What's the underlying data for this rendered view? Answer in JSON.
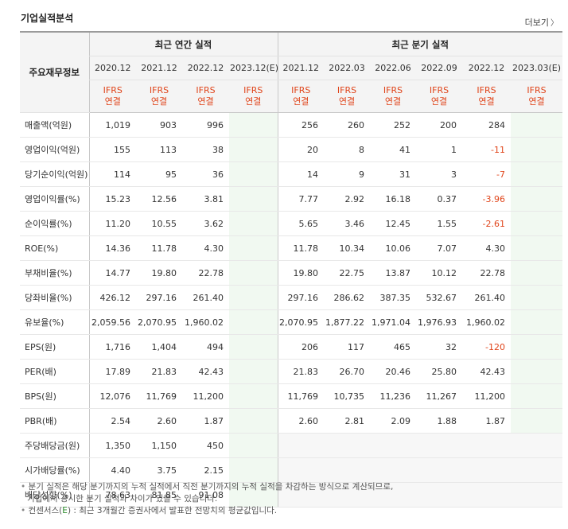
{
  "title": "기업실적분석",
  "more_link": "더보기",
  "table": {
    "row_header": "주요재무정보",
    "groups": {
      "annual": "최근 연간 실적",
      "quarterly": "최근 분기 실적"
    },
    "columns": [
      "2020.12",
      "2021.12",
      "2022.12",
      "2023.12(E)",
      "2021.12",
      "2022.03",
      "2022.06",
      "2022.09",
      "2022.12",
      "2023.03(E)"
    ],
    "standard_top": "IFRS",
    "standard_bottom": "연결",
    "rows": [
      {
        "label": "매출액(억원)",
        "values": [
          "1,019",
          "903",
          "996",
          "",
          "256",
          "260",
          "252",
          "200",
          "284",
          ""
        ]
      },
      {
        "label": "영업이익(억원)",
        "values": [
          "155",
          "113",
          "38",
          "",
          "20",
          "8",
          "41",
          "1",
          "-11",
          ""
        ]
      },
      {
        "label": "당기순이익(억원)",
        "values": [
          "114",
          "95",
          "36",
          "",
          "14",
          "9",
          "31",
          "3",
          "-7",
          ""
        ]
      },
      {
        "label": "영업이익률(%)",
        "values": [
          "15.23",
          "12.56",
          "3.81",
          "",
          "7.77",
          "2.92",
          "16.18",
          "0.37",
          "-3.96",
          ""
        ]
      },
      {
        "label": "순이익률(%)",
        "values": [
          "11.20",
          "10.55",
          "3.62",
          "",
          "5.65",
          "3.46",
          "12.45",
          "1.55",
          "-2.61",
          ""
        ]
      },
      {
        "label": "ROE(%)",
        "values": [
          "14.36",
          "11.78",
          "4.30",
          "",
          "11.78",
          "10.34",
          "10.06",
          "7.07",
          "4.30",
          ""
        ]
      },
      {
        "label": "부채비율(%)",
        "values": [
          "14.77",
          "19.80",
          "22.78",
          "",
          "19.80",
          "22.75",
          "13.87",
          "10.12",
          "22.78",
          ""
        ]
      },
      {
        "label": "당좌비율(%)",
        "values": [
          "426.12",
          "297.16",
          "261.40",
          "",
          "297.16",
          "286.62",
          "387.35",
          "532.67",
          "261.40",
          ""
        ]
      },
      {
        "label": "유보율(%)",
        "values": [
          "2,059.56",
          "2,070.95",
          "1,960.02",
          "",
          "2,070.95",
          "1,877.22",
          "1,971.04",
          "1,976.93",
          "1,960.02",
          ""
        ]
      },
      {
        "label": "EPS(원)",
        "values": [
          "1,716",
          "1,404",
          "494",
          "",
          "206",
          "117",
          "465",
          "32",
          "-120",
          ""
        ]
      },
      {
        "label": "PER(배)",
        "values": [
          "17.89",
          "21.83",
          "42.43",
          "",
          "21.83",
          "26.70",
          "20.46",
          "25.80",
          "42.43",
          ""
        ]
      },
      {
        "label": "BPS(원)",
        "values": [
          "12,076",
          "11,769",
          "11,200",
          "",
          "11,769",
          "10,735",
          "11,236",
          "11,267",
          "11,200",
          ""
        ]
      },
      {
        "label": "PBR(배)",
        "values": [
          "2.54",
          "2.60",
          "1.87",
          "",
          "2.60",
          "2.81",
          "2.09",
          "1.88",
          "1.87",
          ""
        ]
      },
      {
        "label": "주당배당금(원)",
        "values": [
          "1,350",
          "1,150",
          "450",
          "",
          "",
          "",
          "",
          "",
          "",
          ""
        ]
      },
      {
        "label": "시가배당률(%)",
        "values": [
          "4.40",
          "3.75",
          "2.15",
          "",
          "",
          "",
          "",
          "",
          "",
          ""
        ]
      },
      {
        "label": "배당성향(%)",
        "values": [
          "78.63",
          "81.85",
          "91.08",
          "",
          "",
          "",
          "",
          "",
          "",
          ""
        ]
      }
    ]
  },
  "notes": {
    "line1": "분기 실적은 해당 분기까지의 누적 실적에서 직전 분기까지의 누적 실적을 차감하는 방식으로 계산되므로,",
    "line2": "기업에서 공시한 분기 실적과 차이가 있을 수 있습니다.",
    "line3_prefix": "컨센서스(",
    "line3_e": "E",
    "line3_suffix": ") : 최근 3개월간 증권사에서 발표한 전망치의 평균값입니다."
  }
}
